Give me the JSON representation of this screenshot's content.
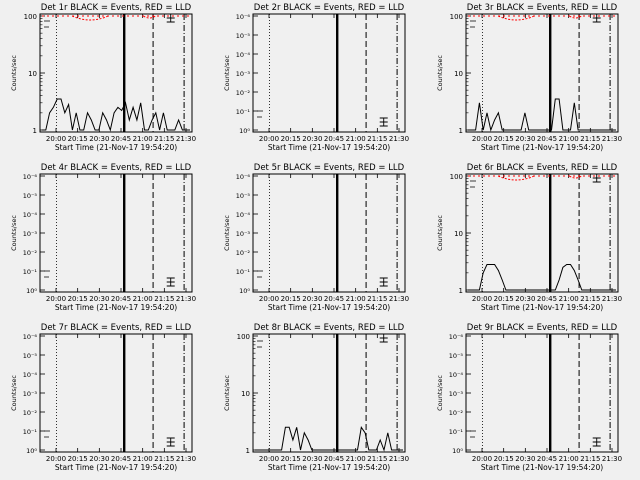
{
  "figure": {
    "background": "#f0f0f0",
    "event_color": "#000000",
    "lld_color": "#ff0000"
  },
  "chart_data": [
    {
      "type": "line",
      "title": "Det 1r  BLACK = Events, RED = LLD",
      "xlabel": "Start Time (21-Nov-17 19:54:20)",
      "ylabel": "Counts/sec",
      "xticks": [
        "20:00",
        "20:15",
        "20:30",
        "20:45",
        "21:00",
        "21:15",
        "21:30"
      ],
      "yscale": "log",
      "ylim": [
        1,
        100
      ],
      "yticks": [
        "1",
        "10",
        "100"
      ],
      "series": [
        {
          "values": [
            1,
            1,
            2,
            2.5,
            3.5,
            3.5,
            2,
            2.8,
            1,
            2,
            1,
            1,
            2,
            1.5,
            1,
            1,
            2,
            1.5,
            1,
            2,
            2.5,
            2.2,
            3,
            1.5,
            2.5,
            1.5,
            3,
            1,
            1,
            1.5,
            2,
            1,
            2,
            1,
            1,
            1,
            1.5,
            1,
            1,
            1
          ]
        },
        {
          "values": [
            100,
            100,
            100,
            100,
            100,
            100,
            100,
            100,
            100,
            100,
            100,
            100,
            100,
            100,
            100,
            100,
            100,
            100,
            100,
            100,
            100,
            100,
            100,
            100,
            100,
            100,
            100,
            100,
            100,
            100,
            100,
            100,
            100,
            100,
            100,
            100,
            100,
            100,
            100,
            100
          ]
        }
      ]
    },
    {
      "type": "line",
      "title": "Det 2r  BLACK = Events, RED = LLD",
      "xlabel": "Start Time (21-Nov-17 19:54:20)",
      "ylabel": "Counts/sec",
      "xticks": [
        "20:00",
        "20:15",
        "20:30",
        "20:45",
        "21:00",
        "21:15",
        "21:30"
      ],
      "yscale": "log",
      "yticks": [
        "10⁰",
        "10⁻¹",
        "10⁻²",
        "10⁻³",
        "10⁻⁴",
        "10⁻⁵",
        "10⁻⁶"
      ],
      "series": []
    },
    {
      "type": "line",
      "title": "Det 3r  BLACK = Events, RED = LLD",
      "xlabel": "Start Time (21-Nov-17 19:54:20)",
      "ylabel": "Counts/sec",
      "xticks": [
        "20:00",
        "20:15",
        "20:30",
        "20:45",
        "21:00",
        "21:15",
        "21:30"
      ],
      "yscale": "log",
      "ylim": [
        1,
        100
      ],
      "yticks": [
        "1",
        "10",
        "100"
      ],
      "series": [
        {
          "values": [
            1,
            1,
            1,
            3,
            1,
            2,
            1,
            1.5,
            2,
            1,
            1,
            1,
            1,
            1,
            1,
            2,
            1,
            1,
            1,
            1,
            1,
            1,
            1,
            3.5,
            3.5,
            1,
            1,
            1,
            3,
            1,
            1,
            1,
            1,
            1,
            1,
            1,
            1,
            1,
            1,
            1
          ]
        },
        {
          "values": [
            100,
            100,
            100,
            100,
            100,
            100,
            100,
            100,
            100,
            100,
            100,
            100,
            100,
            100,
            100,
            100,
            100,
            100,
            100,
            100,
            100,
            100,
            100,
            100,
            100,
            100,
            100,
            100,
            100,
            100,
            100,
            100,
            100,
            100,
            100,
            100,
            100,
            100,
            100,
            100
          ]
        }
      ]
    },
    {
      "type": "line",
      "title": "Det 4r  BLACK = Events, RED = LLD",
      "xlabel": "Start Time (21-Nov-17 19:54:20)",
      "ylabel": "Counts/sec",
      "xticks": [
        "20:00",
        "20:15",
        "20:30",
        "20:45",
        "21:00",
        "21:15",
        "21:30"
      ],
      "yscale": "log",
      "yticks": [
        "10⁰",
        "10⁻¹",
        "10⁻²",
        "10⁻³",
        "10⁻⁴",
        "10⁻⁵",
        "10⁻⁶"
      ],
      "series": []
    },
    {
      "type": "line",
      "title": "Det 5r  BLACK = Events, RED = LLD",
      "xlabel": "Start Time (21-Nov-17 19:54:20)",
      "ylabel": "Counts/sec",
      "xticks": [
        "20:00",
        "20:15",
        "20:30",
        "20:45",
        "21:00",
        "21:15",
        "21:30"
      ],
      "yscale": "log",
      "yticks": [
        "10⁰",
        "10⁻¹",
        "10⁻²",
        "10⁻³",
        "10⁻⁴",
        "10⁻⁵",
        "10⁻⁶"
      ],
      "series": []
    },
    {
      "type": "line",
      "title": "Det 6r  BLACK = Events, RED = LLD",
      "xlabel": "Start Time (21-Nov-17 19:54:20)",
      "ylabel": "Counts/sec",
      "xticks": [
        "20:00",
        "20:15",
        "20:30",
        "20:45",
        "21:00",
        "21:15",
        "21:30"
      ],
      "yscale": "log",
      "ylim": [
        1,
        100
      ],
      "yticks": [
        "1",
        "10",
        "100"
      ],
      "series": [
        {
          "values": [
            1,
            1,
            1,
            1,
            2,
            2.8,
            2.8,
            2.8,
            2.2,
            1.5,
            1,
            1,
            1,
            1,
            1,
            1,
            1,
            1,
            1,
            1,
            1,
            1,
            1,
            1,
            1.5,
            2.5,
            2.8,
            2.8,
            2.2,
            1.5,
            1,
            1,
            1,
            1,
            1,
            1,
            1,
            1,
            1,
            1
          ]
        },
        {
          "values": [
            100,
            100,
            100,
            100,
            100,
            100,
            100,
            100,
            100,
            100,
            100,
            100,
            100,
            100,
            100,
            100,
            100,
            100,
            100,
            100,
            100,
            100,
            100,
            100,
            100,
            100,
            100,
            100,
            100,
            100,
            100,
            100,
            100,
            100,
            100,
            100,
            100,
            100,
            100,
            100
          ]
        }
      ]
    },
    {
      "type": "line",
      "title": "Det 7r  BLACK = Events, RED = LLD",
      "xlabel": "Start Time (21-Nov-17 19:54:20)",
      "ylabel": "Counts/sec",
      "xticks": [
        "20:00",
        "20:15",
        "20:30",
        "20:45",
        "21:00",
        "21:15",
        "21:30"
      ],
      "yscale": "log",
      "yticks": [
        "10⁰",
        "10⁻¹",
        "10⁻²",
        "10⁻³",
        "10⁻⁴",
        "10⁻⁵",
        "10⁻⁶"
      ],
      "series": []
    },
    {
      "type": "line",
      "title": "Det 8r  BLACK = Events, RED = LLD",
      "xlabel": "Start Time (21-Nov-17 19:54:20)",
      "ylabel": "Counts/sec",
      "xticks": [
        "20:00",
        "20:15",
        "20:30",
        "20:45",
        "21:00",
        "21:15",
        "21:30"
      ],
      "yscale": "log",
      "ylim": [
        1,
        100
      ],
      "yticks": [
        "1",
        "10",
        "100"
      ],
      "series": [
        {
          "values": [
            1,
            1,
            1,
            1,
            1,
            1,
            1,
            1,
            2.5,
            2.5,
            1.5,
            2.5,
            1,
            2,
            1.5,
            1,
            1,
            1,
            1,
            1,
            1,
            1,
            1,
            1,
            1,
            1,
            1,
            1,
            2.5,
            2,
            1,
            1,
            1,
            1.5,
            1,
            2,
            1,
            1,
            1,
            1
          ]
        }
      ]
    },
    {
      "type": "line",
      "title": "Det 9r  BLACK = Events, RED = LLD",
      "xlabel": "Start Time (21-Nov-17 19:54:20)",
      "ylabel": "Counts/sec",
      "xticks": [
        "20:00",
        "20:15",
        "20:30",
        "20:45",
        "21:00",
        "21:15",
        "21:30"
      ],
      "yscale": "log",
      "yticks": [
        "10⁰",
        "10⁻¹",
        "10⁻²",
        "10⁻³",
        "10⁻⁴",
        "10⁻⁵",
        "10⁻⁶"
      ],
      "series": []
    }
  ]
}
